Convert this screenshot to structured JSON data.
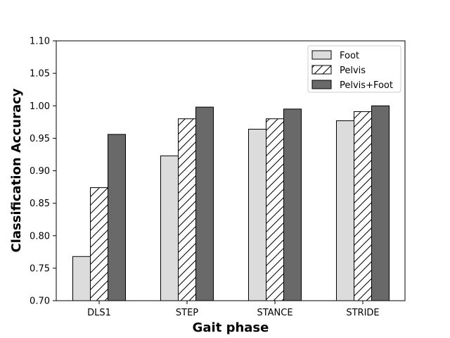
{
  "chart_data": {
    "type": "bar",
    "title": "",
    "xlabel": "Gait phase",
    "ylabel": "Classification Accuracy",
    "categories": [
      "DLS1",
      "STEP",
      "STANCE",
      "STRIDE"
    ],
    "series": [
      {
        "name": "Foot",
        "values": [
          0.768,
          0.923,
          0.964,
          0.977
        ],
        "color": "#dcdcdc",
        "hatch": "none"
      },
      {
        "name": "Pelvis",
        "values": [
          0.874,
          0.98,
          0.98,
          0.991
        ],
        "color": "#ffffff",
        "hatch": "diagonal"
      },
      {
        "name": "Pelvis+Foot",
        "values": [
          0.956,
          0.998,
          0.995,
          1.0
        ],
        "color": "#696969",
        "hatch": "none"
      }
    ],
    "ylim": [
      0.7,
      1.1
    ],
    "yticks": [
      "0.70",
      "0.75",
      "0.80",
      "0.85",
      "0.90",
      "0.95",
      "1.00",
      "1.05",
      "1.10"
    ],
    "grid": false,
    "legend_position": "top-right"
  }
}
